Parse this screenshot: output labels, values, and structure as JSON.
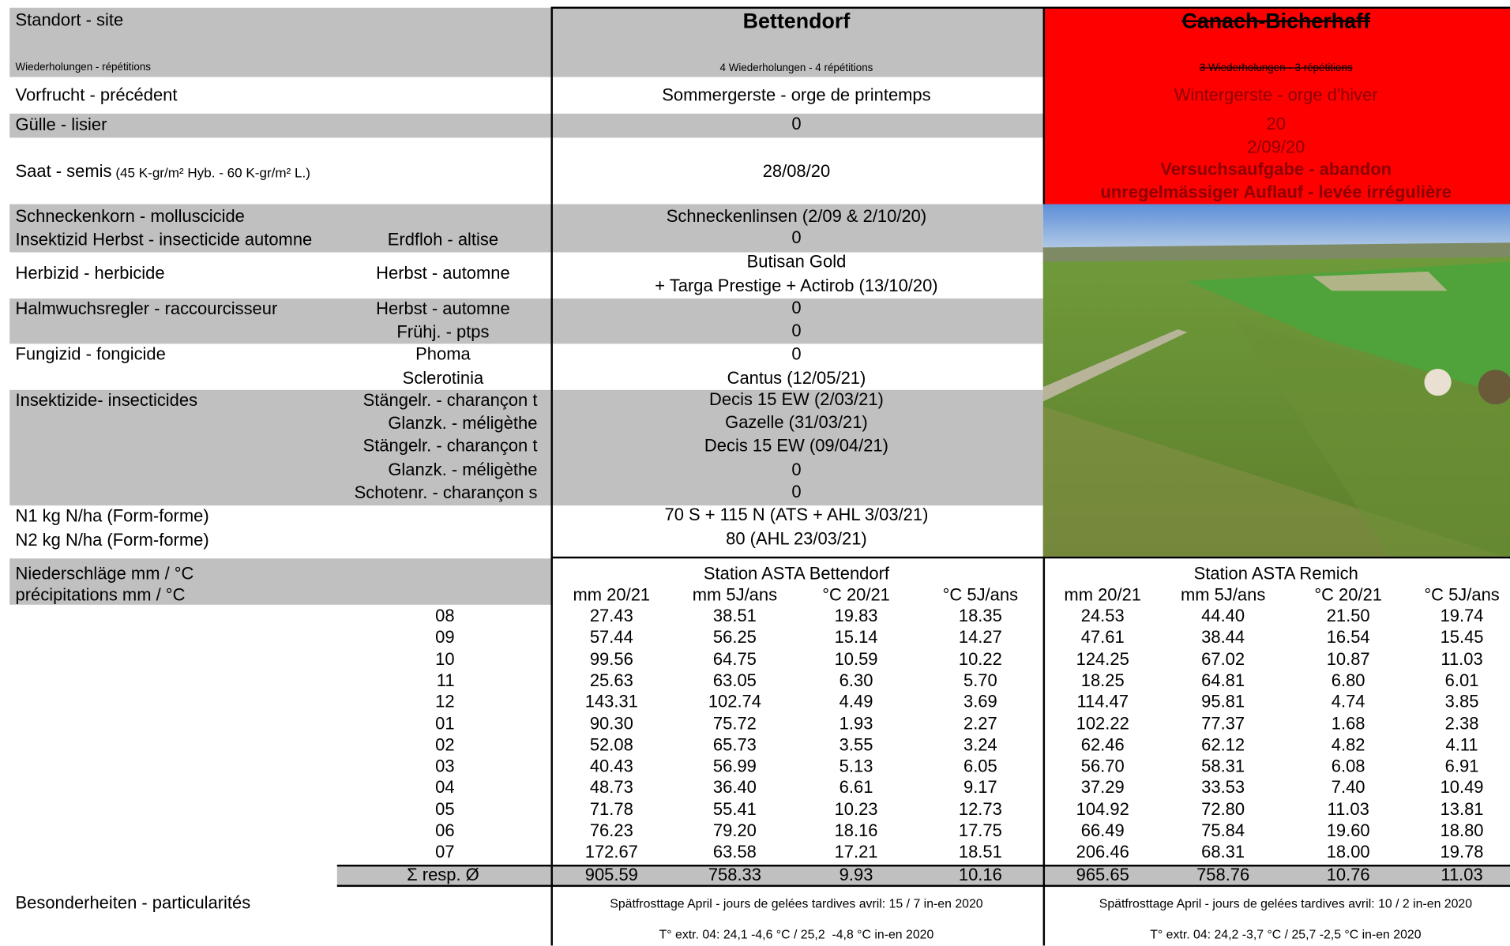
{
  "site": {
    "label": "Standort - site",
    "reps_label": "Wiederholungen - répétitions",
    "bettendorf": {
      "name": "Bettendorf",
      "reps": "4 Wiederholungen - 4 répétitions"
    },
    "canach": {
      "name": "Canach-Bicherhaff",
      "reps": "3 Wiederholungen - 3 répétitions"
    }
  },
  "management": {
    "previous_crop": {
      "label": "Vorfrucht - précédent",
      "bettendorf": "Sommergerste - orge de printemps",
      "canach": "Wintergerste - orge d'hiver"
    },
    "slurry": {
      "label": "Gülle - lisier",
      "bettendorf": "0",
      "canach": "20"
    },
    "sowing": {
      "label": "Saat - semis",
      "note": "(45 K-gr/m² Hyb. - 60 K-gr/m² L.)",
      "bettendorf": "28/08/20",
      "canach": "2/09/20"
    },
    "abandon": [
      "Versuchsaufgabe - abandon",
      "unregelmässiger Auflauf - levée irrégulière"
    ],
    "molluscicide": {
      "label": "Schneckenkorn - molluscicide",
      "bettendorf": "Schneckenlinsen (2/09 & 2/10/20)"
    },
    "insecticide_autumn": {
      "label": "Insektizid Herbst - insecticide automne",
      "sub": "Erdfloh - altise",
      "bettendorf": "0"
    },
    "herbicide": {
      "label": "Herbizid - herbicide",
      "sub": "Herbst - automne",
      "bettendorf": [
        "Butisan Gold",
        "+ Targa Prestige + Actirob (13/10/20)"
      ]
    },
    "growth_regulator": {
      "label": "Halmwuchsregler - raccourcisseur",
      "subs": [
        "Herbst - automne",
        "Frühj. - ptps"
      ],
      "bettendorf": [
        "0",
        "0"
      ]
    },
    "fungicide": {
      "label": "Fungizid - fongicide",
      "subs": [
        "Phoma",
        "Sclerotinia"
      ],
      "bettendorf": [
        "0",
        "Cantus (12/05/21)"
      ]
    },
    "insecticides": {
      "label": "Insektizide- insecticides",
      "subs": [
        "Stängelr. - charançon t",
        "Glanzk. - méligèthe",
        "Stängelr. - charançon t",
        "Glanzk. - méligèthe",
        "Schotenr. - charançon s"
      ],
      "bettendorf": [
        "Decis 15 EW (2/03/21)",
        "Gazelle (31/03/21)",
        "Decis 15 EW (09/04/21)",
        "0",
        "0"
      ]
    },
    "nitrogen": {
      "labels": [
        "N1 kg N/ha (Form-forme)",
        "N2 kg N/ha (Form-forme)"
      ],
      "bettendorf": [
        "70 S + 115 N (ATS + AHL 3/03/21)",
        "80 (AHL 23/03/21)"
      ]
    }
  },
  "climate": {
    "labels": [
      "Niederschläge mm / °C",
      "précipitations mm / °C"
    ],
    "months": [
      "08",
      "09",
      "10",
      "11",
      "12",
      "01",
      "02",
      "03",
      "04",
      "05",
      "06",
      "07"
    ],
    "total_label": "Σ resp. Ø",
    "stations": [
      {
        "name": "Station ASTA Bettendorf",
        "columns": [
          "mm 20/21",
          "mm 5J/ans",
          "°C 20/21",
          "°C 5J/ans"
        ],
        "rows": [
          [
            "27.43",
            "38.51",
            "19.83",
            "18.35"
          ],
          [
            "57.44",
            "56.25",
            "15.14",
            "14.27"
          ],
          [
            "99.56",
            "64.75",
            "10.59",
            "10.22"
          ],
          [
            "25.63",
            "63.05",
            "6.30",
            "5.70"
          ],
          [
            "143.31",
            "102.74",
            "4.49",
            "3.69"
          ],
          [
            "90.30",
            "75.72",
            "1.93",
            "2.27"
          ],
          [
            "52.08",
            "65.73",
            "3.55",
            "3.24"
          ],
          [
            "40.43",
            "56.99",
            "5.13",
            "6.05"
          ],
          [
            "48.73",
            "36.40",
            "6.61",
            "9.17"
          ],
          [
            "71.78",
            "55.41",
            "10.23",
            "12.73"
          ],
          [
            "76.23",
            "79.20",
            "18.16",
            "17.75"
          ],
          [
            "172.67",
            "63.58",
            "17.21",
            "18.51"
          ]
        ],
        "totals": [
          "905.59",
          "758.33",
          "9.93",
          "10.16"
        ]
      },
      {
        "name": "Station ASTA Remich",
        "columns": [
          "mm 20/21",
          "mm 5J/ans",
          "°C 20/21",
          "°C 5J/ans"
        ],
        "rows": [
          [
            "24.53",
            "44.40",
            "21.50",
            "19.74"
          ],
          [
            "47.61",
            "38.44",
            "16.54",
            "15.45"
          ],
          [
            "124.25",
            "67.02",
            "10.87",
            "11.03"
          ],
          [
            "18.25",
            "64.81",
            "6.80",
            "6.01"
          ],
          [
            "114.47",
            "95.81",
            "4.74",
            "3.85"
          ],
          [
            "102.22",
            "77.37",
            "1.68",
            "2.38"
          ],
          [
            "62.46",
            "62.12",
            "4.82",
            "4.11"
          ],
          [
            "56.70",
            "58.31",
            "6.08",
            "6.91"
          ],
          [
            "37.29",
            "33.53",
            "7.40",
            "10.49"
          ],
          [
            "104.92",
            "72.80",
            "11.03",
            "13.81"
          ],
          [
            "66.49",
            "75.84",
            "19.60",
            "18.80"
          ],
          [
            "206.46",
            "68.31",
            "18.00",
            "19.78"
          ]
        ],
        "totals": [
          "965.65",
          "758.76",
          "10.76",
          "11.03"
        ]
      }
    ]
  },
  "particularities": {
    "label": "Besonderheiten - particularités",
    "bettendorf": [
      "Spätfrosttage April - jours de gelées tardives avril: 15 / 7 in-en 2020",
      "T° extr. 04: 24,1 -4,6 °C / 25,2  -4,8 °C in-en 2020"
    ],
    "canach": [
      "Spätfrosttage April - jours de gelées tardives avril: 10 / 2 in-en 2020",
      "T° extr. 04: 24,2 -3,7 °C / 25,7 -2,5 °C in-en 2020"
    ]
  }
}
